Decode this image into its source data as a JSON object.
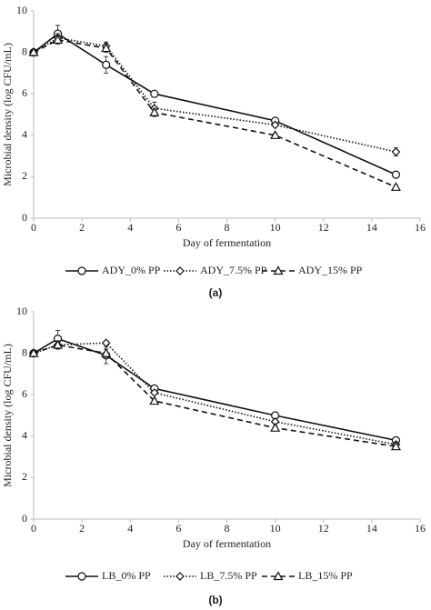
{
  "chart_data": [
    {
      "type": "line",
      "caption": "(a)",
      "x_label": "Day of fermentation",
      "y_label": "Microbial density (log CFU/mL)",
      "x": [
        0,
        1,
        3,
        5,
        10,
        15
      ],
      "xlim": [
        0,
        16
      ],
      "xticks": [
        0,
        2,
        4,
        6,
        8,
        10,
        12,
        14,
        16
      ],
      "ylim": [
        0,
        10
      ],
      "yticks": [
        0,
        2,
        4,
        6,
        8,
        10
      ],
      "grid": false,
      "legend": "bottom",
      "series": [
        {
          "name": "ADY_0% PP",
          "color": "#111111",
          "dash": "solid",
          "marker": "circle",
          "values": [
            8.0,
            8.9,
            7.4,
            6.0,
            4.7,
            2.1
          ],
          "errors": [
            0.1,
            0.4,
            0.4,
            0.1,
            0.1,
            0.1
          ]
        },
        {
          "name": "ADY_7.5% PP",
          "color": "#111111",
          "dash": "dotted",
          "marker": "diamond",
          "values": [
            8.0,
            8.7,
            8.3,
            5.3,
            4.5,
            3.2
          ],
          "errors": [
            0.1,
            0.2,
            0.2,
            0.3,
            0.1,
            0.2
          ]
        },
        {
          "name": "ADY_15% PP",
          "color": "#111111",
          "dash": "dashed",
          "marker": "triangle",
          "values": [
            8.0,
            8.6,
            8.2,
            5.1,
            4.0,
            1.5
          ],
          "errors": [
            0.1,
            0.2,
            0.2,
            0.2,
            0.1,
            0.1
          ]
        }
      ]
    },
    {
      "type": "line",
      "caption": "(b)",
      "x_label": "Day of fermentation",
      "y_label": "Microbial density (log CFU/mL)",
      "x": [
        0,
        1,
        3,
        5,
        10,
        15
      ],
      "xlim": [
        0,
        16
      ],
      "xticks": [
        0,
        2,
        4,
        6,
        8,
        10,
        12,
        14,
        16
      ],
      "ylim": [
        0,
        10
      ],
      "yticks": [
        0,
        2,
        4,
        6,
        8,
        10
      ],
      "grid": false,
      "legend": "bottom",
      "series": [
        {
          "name": "LB_0% PP",
          "color": "#111111",
          "dash": "solid",
          "marker": "circle",
          "values": [
            8.0,
            8.7,
            7.9,
            6.3,
            5.0,
            3.8
          ],
          "errors": [
            0.1,
            0.4,
            0.4,
            0.1,
            0.1,
            0.1
          ]
        },
        {
          "name": "LB_7.5% PP",
          "color": "#111111",
          "dash": "dotted",
          "marker": "diamond",
          "values": [
            8.0,
            8.4,
            8.5,
            6.1,
            4.7,
            3.6
          ],
          "errors": [
            0.1,
            0.2,
            0.1,
            0.1,
            0.1,
            0.1
          ]
        },
        {
          "name": "LB_15% PP",
          "color": "#111111",
          "dash": "dashed",
          "marker": "triangle",
          "values": [
            8.0,
            8.4,
            8.0,
            5.7,
            4.4,
            3.5
          ],
          "errors": [
            0.1,
            0.2,
            0.2,
            0.1,
            0.1,
            0.1
          ]
        }
      ]
    }
  ]
}
